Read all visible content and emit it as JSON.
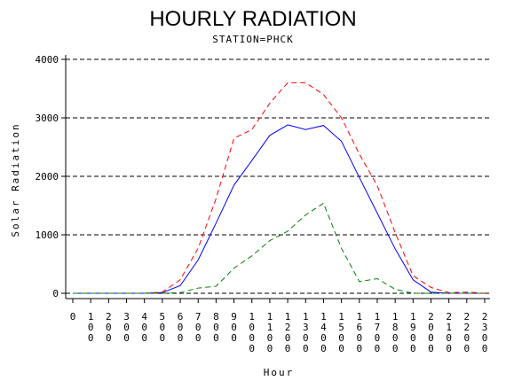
{
  "chart_data": {
    "type": "line",
    "title": "HOURLY RADIATION",
    "subtitle": "STATION=PHCK",
    "xlabel": "Hour",
    "ylabel": "Solar Radiation",
    "x_tick_labels": [
      "0",
      "100",
      "200",
      "300",
      "400",
      "500",
      "600",
      "700",
      "800",
      "900",
      "1000",
      "1100",
      "1200",
      "1300",
      "1400",
      "1500",
      "1600",
      "1700",
      "1800",
      "1900",
      "2000",
      "2100",
      "2200",
      "2300"
    ],
    "x": [
      0,
      100,
      200,
      300,
      400,
      500,
      600,
      700,
      800,
      900,
      1000,
      1100,
      1200,
      1300,
      1400,
      1500,
      1600,
      1700,
      1800,
      1900,
      2000,
      2100,
      2200,
      2300
    ],
    "y_ticks": [
      0,
      1000,
      2000,
      3000,
      4000
    ],
    "y_tick_labels": [
      "0",
      "1000",
      "2000",
      "3000",
      "4000"
    ],
    "ylim": [
      0,
      4000
    ],
    "grid": "horizontal dashed",
    "series": [
      {
        "color": "#0000ff",
        "dash": "solid",
        "values": [
          0,
          0,
          0,
          0,
          0,
          10,
          130,
          570,
          1200,
          1850,
          2270,
          2700,
          2880,
          2800,
          2870,
          2600,
          1980,
          1370,
          760,
          230,
          20,
          0,
          0,
          0
        ]
      },
      {
        "color": "#ff0000",
        "dash": "dashed",
        "values": [
          0,
          0,
          0,
          0,
          0,
          20,
          230,
          770,
          1620,
          2650,
          2800,
          3250,
          3600,
          3600,
          3400,
          3000,
          2380,
          1840,
          1040,
          300,
          100,
          10,
          20,
          0
        ]
      },
      {
        "color": "#008000",
        "dash": "dashed",
        "values": [
          0,
          0,
          0,
          0,
          0,
          0,
          10,
          90,
          120,
          430,
          640,
          900,
          1060,
          1340,
          1540,
          770,
          200,
          250,
          70,
          0,
          0,
          0,
          0,
          0
        ]
      }
    ]
  }
}
